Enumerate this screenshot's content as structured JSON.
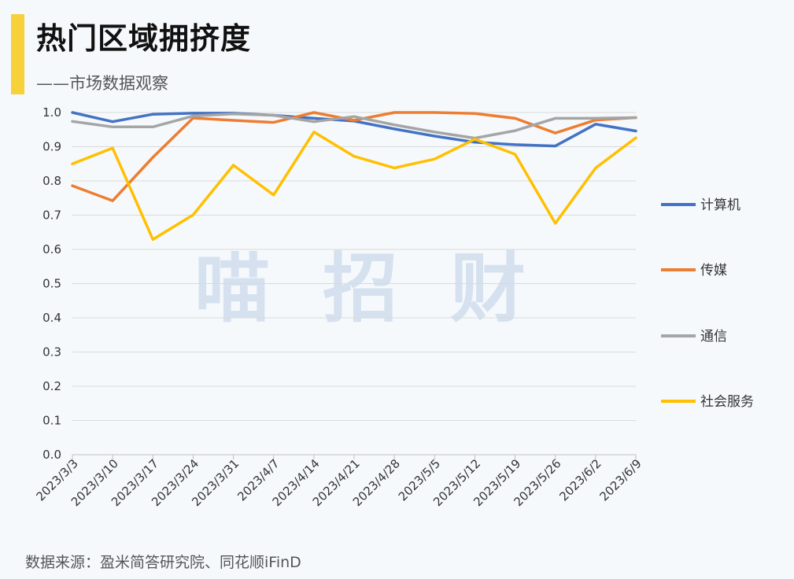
{
  "header": {
    "title": "热门区域拥挤度",
    "subtitle": "——市场数据观察"
  },
  "footer": {
    "source": "数据来源：盈米简答研究院、同花顺iFinD"
  },
  "watermark": {
    "chars": [
      "喵",
      "招",
      "财"
    ]
  },
  "chart_data": {
    "type": "line",
    "title": "热门区域拥挤度",
    "xlabel": "",
    "ylabel": "",
    "ylim": [
      0,
      1.0
    ],
    "yticks": [
      "0.0",
      "0.1",
      "0.2",
      "0.3",
      "0.4",
      "0.5",
      "0.6",
      "0.7",
      "0.8",
      "0.9",
      "1.0"
    ],
    "grid": true,
    "legend_position": "right",
    "x": [
      "2023/3/3",
      "2023/3/10",
      "2023/3/17",
      "2023/3/24",
      "2023/3/31",
      "2023/4/7",
      "2023/4/14",
      "2023/4/21",
      "2023/4/28",
      "2023/5/5",
      "2023/5/12",
      "2023/5/19",
      "2023/5/26",
      "2023/6/2",
      "2023/6/9"
    ],
    "series": [
      {
        "name": "计算机",
        "color": "#4472c4",
        "values": [
          1.0,
          0.973,
          0.995,
          0.998,
          0.998,
          0.992,
          0.983,
          0.975,
          0.952,
          0.931,
          0.913,
          0.906,
          0.902,
          0.966,
          0.946
        ]
      },
      {
        "name": "传媒",
        "color": "#ed7d31",
        "values": [
          0.786,
          0.742,
          0.869,
          0.984,
          0.977,
          0.971,
          1.0,
          0.977,
          1.0,
          1.0,
          0.997,
          0.983,
          0.94,
          0.978,
          0.985
        ]
      },
      {
        "name": "通信",
        "color": "#a5a5a5",
        "values": [
          0.974,
          0.958,
          0.958,
          0.99,
          0.996,
          0.992,
          0.973,
          0.988,
          0.964,
          0.943,
          0.925,
          0.947,
          0.983,
          0.983,
          0.985
        ]
      },
      {
        "name": "社会服务",
        "color": "#ffc000",
        "values": [
          0.85,
          0.896,
          0.629,
          0.701,
          0.846,
          0.759,
          0.943,
          0.872,
          0.838,
          0.864,
          0.922,
          0.878,
          0.676,
          0.838,
          0.926
        ]
      }
    ]
  }
}
